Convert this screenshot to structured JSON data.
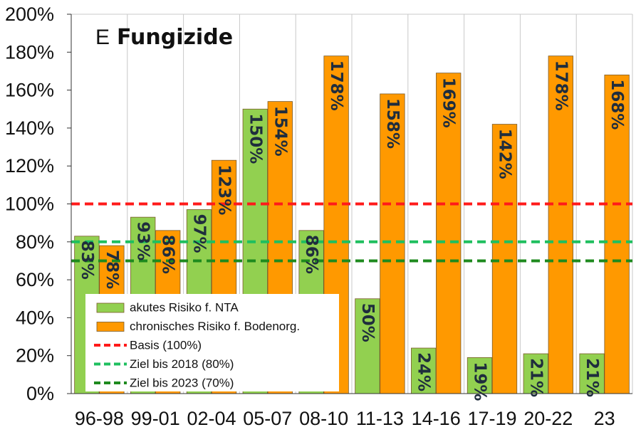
{
  "chart_data": {
    "type": "bar",
    "title_letter": "E",
    "title": "Fungizide",
    "categories": [
      "96-98",
      "99-01",
      "02-04",
      "05-07",
      "08-10",
      "11-13",
      "14-16",
      "17-19",
      "20-22",
      "23"
    ],
    "series": [
      {
        "name": "akutes Risiko f. NTA",
        "color": "#92d050",
        "values": [
          83,
          93,
          97,
          150,
          86,
          50,
          24,
          19,
          21,
          21
        ],
        "labels": [
          "83%",
          "93%",
          "97%",
          "150%",
          "86%",
          "50%",
          "24%",
          "19%",
          "21%",
          "21%"
        ]
      },
      {
        "name": "chronisches Risiko f. Bodenorg.",
        "color": "#ff9900",
        "values": [
          78,
          86,
          123,
          154,
          178,
          158,
          169,
          142,
          178,
          168
        ],
        "labels": [
          "78%",
          "86%",
          "123%",
          "154%",
          "178%",
          "158%",
          "169%",
          "142%",
          "178%",
          "168%"
        ]
      }
    ],
    "reference_lines": [
      {
        "name": "Basis (100%)",
        "value": 100,
        "color": "#ff1a1a"
      },
      {
        "name": "Ziel bis 2018 (80%)",
        "value": 80,
        "color": "#1fbf5f"
      },
      {
        "name": "Ziel bis 2023 (70%)",
        "value": 70,
        "color": "#1e8a1e"
      }
    ],
    "ylim": [
      0,
      200
    ],
    "yticks": [
      0,
      20,
      40,
      60,
      80,
      100,
      120,
      140,
      160,
      180,
      200
    ],
    "ytick_labels": [
      "0%",
      "20%",
      "40%",
      "60%",
      "80%",
      "100%",
      "120%",
      "140%",
      "160%",
      "180%",
      "200%"
    ],
    "grid": "vertical",
    "legend_position": "bottom-left inside"
  }
}
